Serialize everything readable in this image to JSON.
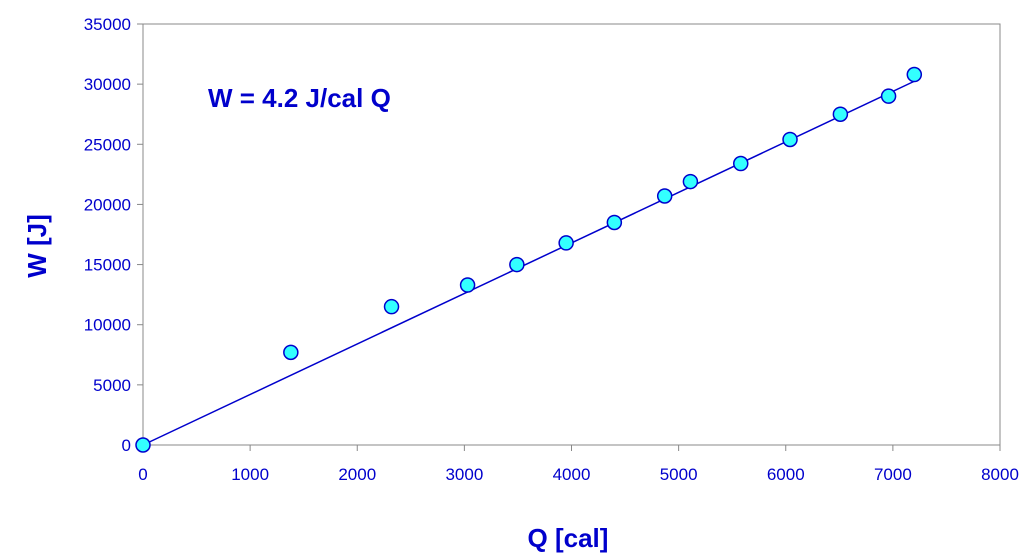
{
  "chart_data": {
    "type": "scatter",
    "xlabel": "Q [cal]",
    "ylabel": "W [J]",
    "xlim": [
      0,
      8000
    ],
    "ylim": [
      0,
      35000
    ],
    "x_ticks": [
      0,
      1000,
      2000,
      3000,
      4000,
      5000,
      6000,
      7000,
      8000
    ],
    "y_ticks": [
      0,
      5000,
      10000,
      15000,
      20000,
      25000,
      30000,
      35000
    ],
    "grid": false,
    "annotation": "W = 4.2 J/cal Q",
    "series": [
      {
        "points": [
          {
            "x": 0,
            "y": 0
          },
          {
            "x": 1380,
            "y": 7700
          },
          {
            "x": 2320,
            "y": 11500
          },
          {
            "x": 3030,
            "y": 13300
          },
          {
            "x": 3490,
            "y": 15000
          },
          {
            "x": 3950,
            "y": 16800
          },
          {
            "x": 4400,
            "y": 18500
          },
          {
            "x": 4870,
            "y": 20700
          },
          {
            "x": 5110,
            "y": 21900
          },
          {
            "x": 5580,
            "y": 23400
          },
          {
            "x": 6040,
            "y": 25400
          },
          {
            "x": 6510,
            "y": 27500
          },
          {
            "x": 6960,
            "y": 29000
          },
          {
            "x": 7200,
            "y": 30800
          }
        ]
      }
    ],
    "fit_line": {
      "slope": 4.2,
      "x": [
        0,
        7200
      ]
    },
    "colors": {
      "text": "#0000cc",
      "marker_fill": "#33ffff",
      "marker_stroke": "#0000cc",
      "line": "#0000cc",
      "axis": "#888888"
    }
  }
}
